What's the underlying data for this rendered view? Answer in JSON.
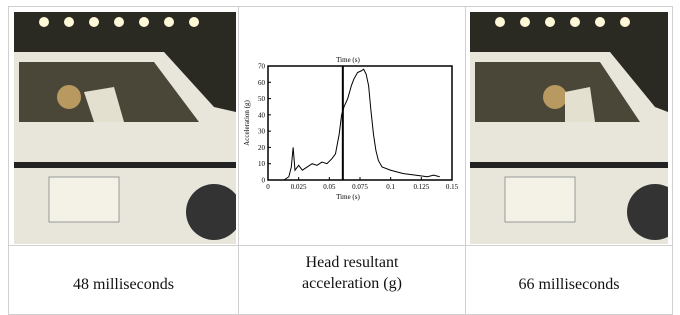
{
  "table": {
    "captions": [
      "48 milliseconds",
      "Head resultant acceleration (g)",
      "66 milliseconds"
    ]
  },
  "chart": {
    "type": "line",
    "title": "Time (s)",
    "x_label": "Time (s)",
    "y_label": "Acceleration (g)",
    "xlim": [
      0,
      0.15
    ],
    "ylim": [
      0,
      70
    ],
    "xticks": [
      0,
      0.025,
      0.05,
      0.075,
      0.1,
      0.125,
      0.15
    ],
    "yticks": [
      0,
      10,
      20,
      30,
      40,
      50,
      60,
      70
    ],
    "marker_x": 0.061,
    "series": [
      {
        "color": "#000000",
        "x": [
          0.013,
          0.017,
          0.019,
          0.0205,
          0.022,
          0.025,
          0.028,
          0.032,
          0.036,
          0.04,
          0.044,
          0.048,
          0.052,
          0.055,
          0.058,
          0.06,
          0.062,
          0.065,
          0.068,
          0.07,
          0.073,
          0.076,
          0.078,
          0.08,
          0.082,
          0.084,
          0.086,
          0.088,
          0.09,
          0.093,
          0.1,
          0.11,
          0.12,
          0.13,
          0.135,
          0.14
        ],
        "values": [
          0,
          2,
          8,
          20,
          6,
          9,
          6,
          8,
          10,
          9,
          11,
          10,
          13,
          16,
          28,
          40,
          45,
          50,
          58,
          62,
          66,
          67,
          68,
          65,
          58,
          42,
          28,
          18,
          12,
          8,
          6,
          4,
          3,
          2,
          3,
          2
        ]
      }
    ]
  }
}
